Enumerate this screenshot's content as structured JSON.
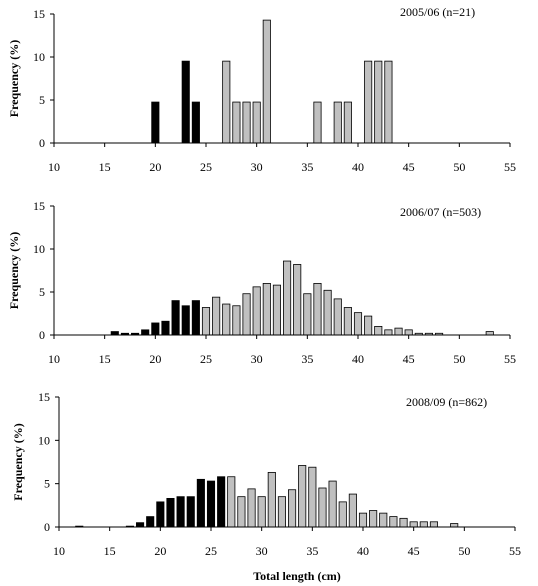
{
  "colors": {
    "juvenile": "#000000",
    "adult": "#c0c0c0",
    "stroke": "#000000"
  },
  "chart_data": [
    {
      "type": "bar",
      "annotation": "2005/06 (n=21)",
      "ylabel": "Frequency (%)",
      "xlabel": "",
      "xlim": [
        10,
        55
      ],
      "ylim": [
        0,
        15
      ],
      "xticks": [
        10,
        15,
        20,
        25,
        30,
        35,
        40,
        45,
        50,
        55
      ],
      "yticks": [
        0,
        5,
        10,
        15
      ],
      "black_max_length": 24,
      "x": [
        20,
        23,
        24,
        27,
        28,
        29,
        30,
        31,
        36,
        38,
        39,
        41,
        42,
        43
      ],
      "values": [
        4.76,
        9.52,
        4.76,
        9.52,
        4.76,
        4.76,
        4.76,
        14.29,
        4.76,
        4.76,
        4.76,
        9.52,
        9.52,
        9.52
      ]
    },
    {
      "type": "bar",
      "annotation": "2006/07 (n=503)",
      "ylabel": "Frequency (%)",
      "xlabel": "",
      "xlim": [
        10,
        55
      ],
      "ylim": [
        0,
        15
      ],
      "xticks": [
        10,
        15,
        20,
        25,
        30,
        35,
        40,
        45,
        50,
        55
      ],
      "yticks": [
        0,
        5,
        10,
        15
      ],
      "black_max_length": 24,
      "x": [
        16,
        17,
        18,
        19,
        20,
        21,
        22,
        23,
        24,
        25,
        26,
        27,
        28,
        29,
        30,
        31,
        32,
        33,
        34,
        35,
        36,
        37,
        38,
        39,
        40,
        41,
        42,
        43,
        44,
        45,
        46,
        47,
        48,
        53
      ],
      "values": [
        0.4,
        0.2,
        0.2,
        0.6,
        1.4,
        1.6,
        4.0,
        3.4,
        4.0,
        3.2,
        4.4,
        3.6,
        3.4,
        4.8,
        5.6,
        6.0,
        5.8,
        8.6,
        8.2,
        4.8,
        6.0,
        5.2,
        4.2,
        3.2,
        2.6,
        2.2,
        1.0,
        0.6,
        0.8,
        0.6,
        0.2,
        0.2,
        0.2,
        0.4
      ]
    },
    {
      "type": "bar",
      "annotation": "2008/09 (n=862)",
      "ylabel": "Frequency (%)",
      "xlabel": "Total length (cm)",
      "xlim": [
        10,
        55
      ],
      "ylim": [
        0,
        15
      ],
      "xticks": [
        10,
        15,
        20,
        25,
        30,
        35,
        40,
        45,
        50,
        55
      ],
      "yticks": [
        0,
        5,
        10,
        15
      ],
      "black_max_length": 26,
      "x": [
        12,
        17,
        18,
        19,
        20,
        21,
        22,
        23,
        24,
        25,
        26,
        27,
        28,
        29,
        30,
        31,
        32,
        33,
        34,
        35,
        36,
        37,
        38,
        39,
        40,
        41,
        42,
        43,
        44,
        45,
        46,
        47,
        49
      ],
      "values": [
        0.1,
        0.1,
        0.5,
        1.2,
        2.9,
        3.3,
        3.5,
        3.5,
        5.5,
        5.3,
        5.8,
        5.8,
        3.5,
        4.4,
        3.5,
        6.3,
        3.5,
        4.3,
        7.1,
        6.9,
        4.5,
        5.3,
        2.9,
        3.8,
        1.6,
        1.9,
        1.6,
        1.2,
        1.0,
        0.6,
        0.6,
        0.6,
        0.4
      ]
    }
  ]
}
